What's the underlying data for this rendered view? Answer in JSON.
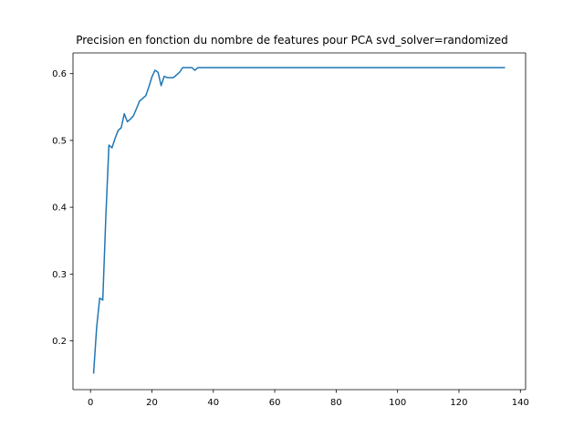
{
  "chart_data": {
    "type": "line",
    "title": "Precision en fonction du nombre de features pour PCA svd_solver=randomized",
    "xlabel": "",
    "ylabel": "",
    "xlim": [
      -5.7,
      141.7
    ],
    "ylim": [
      0.127,
      0.631
    ],
    "grid": false,
    "line_color": "#1f77b4",
    "x_ticks": [
      0,
      20,
      40,
      60,
      80,
      100,
      120,
      140
    ],
    "y_ticks": [
      0.2,
      0.3,
      0.4,
      0.5,
      0.6
    ],
    "x_tick_labels": [
      "0",
      "20",
      "40",
      "60",
      "80",
      "100",
      "120",
      "140"
    ],
    "y_tick_labels": [
      "0.2",
      "0.3",
      "0.4",
      "0.5",
      "0.6"
    ],
    "series": [
      {
        "x": [
          1,
          2,
          3,
          4,
          5,
          6,
          7,
          8,
          9,
          10,
          11,
          12,
          13,
          14,
          15,
          16,
          17,
          18,
          19,
          20,
          21,
          22,
          23,
          24,
          25,
          26,
          27,
          28,
          29,
          30,
          31,
          32,
          33,
          34,
          35,
          40,
          50,
          60,
          70,
          80,
          90,
          100,
          110,
          120,
          130,
          135
        ],
        "y": [
          0.151,
          0.22,
          0.264,
          0.261,
          0.387,
          0.493,
          0.489,
          0.503,
          0.515,
          0.519,
          0.54,
          0.528,
          0.532,
          0.537,
          0.548,
          0.559,
          0.563,
          0.567,
          0.58,
          0.595,
          0.605,
          0.602,
          0.582,
          0.596,
          0.594,
          0.594,
          0.594,
          0.598,
          0.602,
          0.609,
          0.609,
          0.609,
          0.609,
          0.605,
          0.609,
          0.609,
          0.609,
          0.609,
          0.609,
          0.609,
          0.609,
          0.609,
          0.609,
          0.609,
          0.609,
          0.609
        ]
      }
    ]
  }
}
